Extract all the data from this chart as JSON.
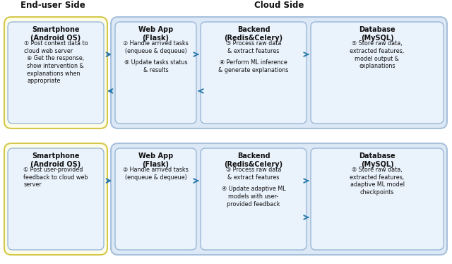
{
  "title_left": "End-user Side",
  "title_right": "Cloud Side",
  "bg_color": "#ffffff",
  "yellow_bg": "#fefee8",
  "yellow_border": "#d4c84a",
  "blue_bg_outer": "#dce8f5",
  "blue_border_outer": "#a8c0dc",
  "inner_box_bg": "#eaf2fc",
  "inner_box_border": "#9ab8d8",
  "arrow_color": "#2a7aaa",
  "text_color": "#111111",
  "rows": [
    {
      "smartphone_title": "Smartphone\n(Android OS)",
      "smartphone_items": [
        "① Post context data to\ncloud web server",
        "⑧ Get the response,\nshow intervention &\nexplanations when\nappropriate"
      ],
      "webapp_title": "Web App\n(Flask)",
      "webapp_items": [
        "② Handle arrived tasks\n(enqueue & dequeue)",
        "⑥ Update tasks status\n& results"
      ],
      "backend_title": "Backend\n(Redis&Celery)",
      "backend_items": [
        "③ Process raw data\n& extract features",
        "④ Perform ML inference\n& generate explanations"
      ],
      "database_title": "Database\n(MySQL)",
      "database_items": [
        "⑤ Store raw data,\nextracted features,\nmodel output &\nexplanations"
      ],
      "has_back_arrows": true,
      "back_arrow_from_backend_to_db": false
    },
    {
      "smartphone_title": "Smartphone\n(Android OS)",
      "smartphone_items": [
        "① Post user-provided\nfeedback to cloud web\nserver"
      ],
      "webapp_title": "Web App\n(Flask)",
      "webapp_items": [
        "② Handle arrived tasks\n(enqueue & dequeue)"
      ],
      "backend_title": "Backend\n(Redis&Celery)",
      "backend_items": [
        "③ Process raw data\n& extract features",
        "④ Update adaptive ML\nmodels with user-\nprovided feedback"
      ],
      "database_title": "Database\n(MySQL)",
      "database_items": [
        "⑤ Store raw data,\nextracted features,\nadaptive ML model\ncheckpoints"
      ],
      "has_back_arrows": false,
      "back_arrow_from_backend_to_db": true
    }
  ]
}
